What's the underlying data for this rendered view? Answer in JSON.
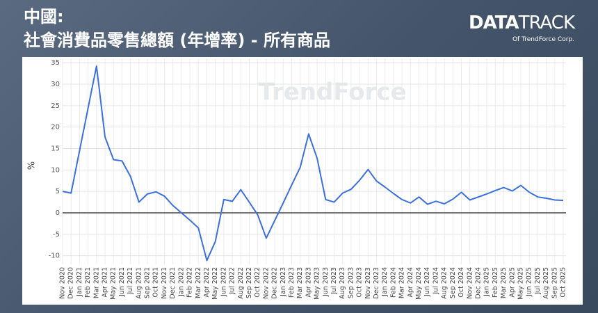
{
  "header": {
    "line1": "中國:",
    "line2": "社會消費品零售總額 (年增率) - 所有商品"
  },
  "branding": {
    "logo_a": "DATA",
    "logo_b": "TRACK",
    "logo_sub": "Of TrendForce Corp.",
    "watermark": "TrendForce"
  },
  "chart_data": {
    "type": "line",
    "y_label": "%",
    "categories": [
      "Nov 2020",
      "Dec 2020",
      "Jan 2021",
      "Feb 2021",
      "Mar 2021",
      "Apr 2021",
      "May 2021",
      "Jun 2021",
      "Jul 2021",
      "Aug 2021",
      "Sep 2021",
      "Oct 2021",
      "Nov 2021",
      "Dec 2021",
      "Jan 2022",
      "Feb 2022",
      "Mar 2022",
      "Apr 2022",
      "May 2022",
      "Jun 2022",
      "Jul 2022",
      "Aug 2022",
      "Sep 2022",
      "Oct 2022",
      "Nov 2022",
      "Dec 2022",
      "Jan 2023",
      "Feb 2023",
      "Mar 2023",
      "Apr 2023",
      "May 2023",
      "Jun 2023",
      "Jul 2023",
      "Aug 2023",
      "Sep 2023",
      "Oct 2023",
      "Nov 2023",
      "Dec 2023",
      "Jan 2024",
      "Feb 2024",
      "Mar 2024",
      "Apr 2024",
      "May 2024",
      "Jun 2024",
      "Jul 2024",
      "Aug 2024",
      "Sep 2024",
      "Oct 2024",
      "Nov 2024",
      "Dec 2024",
      "Jan 2025",
      "Feb 2025",
      "Mar 2025",
      "Apr 2025",
      "May 2025",
      "Jun 2025",
      "Jul 2025",
      "Aug 2025",
      "Sep 2025",
      "Oct 2025"
    ],
    "series": [
      {
        "color": "#3a6fe0",
        "values": [
          5.0,
          4.6,
          14.5,
          24.4,
          34.2,
          17.7,
          12.4,
          12.1,
          8.5,
          2.5,
          4.4,
          4.9,
          3.9,
          1.7,
          0.0,
          -1.7,
          -3.5,
          -11.1,
          -6.7,
          3.1,
          2.7,
          5.4,
          2.5,
          -0.5,
          -5.9,
          -1.8,
          2.3,
          6.5,
          10.6,
          18.4,
          12.7,
          3.1,
          2.5,
          4.6,
          5.5,
          7.6,
          10.1,
          7.4,
          6.0,
          4.5,
          3.1,
          2.3,
          3.7,
          2.0,
          2.7,
          2.1,
          3.2,
          4.8,
          3.0,
          3.7,
          4.4,
          5.2,
          5.9,
          5.1,
          6.4,
          4.8,
          3.7,
          3.4,
          3.0,
          2.9
        ]
      }
    ],
    "ylim": [
      -12,
      36
    ],
    "yticks": [
      -10,
      -5,
      0,
      5,
      10,
      15,
      20,
      25,
      30,
      35
    ],
    "grid": true
  }
}
